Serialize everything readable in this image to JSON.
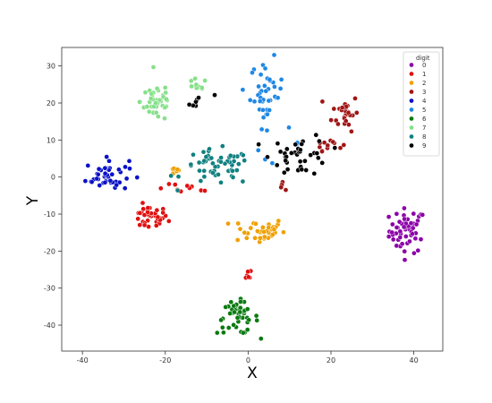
{
  "chart_data": {
    "type": "scatter",
    "xlabel": "X",
    "ylabel": "Y",
    "xlim": [
      -45,
      47
    ],
    "ylim": [
      -47,
      35
    ],
    "xticks": [
      -40,
      -20,
      0,
      20,
      40
    ],
    "yticks": [
      -40,
      -30,
      -20,
      -10,
      0,
      10,
      20,
      30
    ],
    "grid": false,
    "legend": {
      "title": "digit",
      "placement": "top-right"
    },
    "series": [
      {
        "name": "0",
        "color": "#8b00a8",
        "clusters": [
          {
            "cx": 38.5,
            "cy": -14.5,
            "sx": 2.2,
            "sy": 3.0,
            "n": 55
          }
        ]
      },
      {
        "name": "1",
        "color": "#e01010",
        "clusters": [
          {
            "cx": -24,
            "cy": -11,
            "sx": 2.3,
            "sy": 1.6,
            "n": 38
          },
          {
            "cx": -15,
            "cy": -3.2,
            "sx": 3.5,
            "sy": 0.6,
            "n": 10
          },
          {
            "cx": 0.2,
            "cy": -26,
            "sx": 0.4,
            "sy": 0.8,
            "n": 6
          }
        ]
      },
      {
        "name": "2",
        "color": "#f0a000",
        "clusters": [
          {
            "cx": 2.5,
            "cy": -14.5,
            "sx": 3.2,
            "sy": 1.8,
            "n": 38
          },
          {
            "cx": -17,
            "cy": 1.7,
            "sx": 1.2,
            "sy": 0.6,
            "n": 8
          }
        ]
      },
      {
        "name": "3",
        "color": "#a01515",
        "clusters": [
          {
            "cx": 23.5,
            "cy": 17.5,
            "sx": 1.6,
            "sy": 2.5,
            "n": 26
          },
          {
            "cx": 19.5,
            "cy": 9,
            "sx": 1.6,
            "sy": 0.9,
            "n": 12
          },
          {
            "cx": 8,
            "cy": -2.5,
            "sx": 0.4,
            "sy": 0.5,
            "n": 5
          }
        ]
      },
      {
        "name": "4",
        "color": "#0a10c8",
        "clusters": [
          {
            "cx": -34,
            "cy": 0.5,
            "sx": 2.6,
            "sy": 2.2,
            "n": 45
          }
        ]
      },
      {
        "name": "5",
        "color": "#1e88e5",
        "clusters": [
          {
            "cx": 4.5,
            "cy": 22.5,
            "sx": 2.0,
            "sy": 4.5,
            "n": 42
          },
          {
            "cx": 7,
            "cy": 9,
            "sx": 3.0,
            "sy": 2.0,
            "n": 5
          }
        ]
      },
      {
        "name": "6",
        "color": "#0a7a10",
        "clusters": [
          {
            "cx": -2.5,
            "cy": -38,
            "sx": 2.5,
            "sy": 2.2,
            "n": 45
          }
        ]
      },
      {
        "name": "7",
        "color": "#86e08a",
        "clusters": [
          {
            "cx": -22,
            "cy": 20.5,
            "sx": 2.0,
            "sy": 2.8,
            "n": 45
          },
          {
            "cx": -12.5,
            "cy": 24.5,
            "sx": 1.3,
            "sy": 1.0,
            "n": 10
          }
        ]
      },
      {
        "name": "8",
        "color": "#118080",
        "clusters": [
          {
            "cx": -7.5,
            "cy": 2.5,
            "sx": 4.2,
            "sy": 2.4,
            "n": 55
          }
        ]
      },
      {
        "name": "9",
        "color": "#000000",
        "clusters": [
          {
            "cx": 12.5,
            "cy": 6,
            "sx": 3.5,
            "sy": 2.8,
            "n": 40
          },
          {
            "cx": -12.5,
            "cy": 20,
            "sx": 0.9,
            "sy": 0.6,
            "n": 6
          },
          {
            "cx": -8,
            "cy": 22,
            "sx": 0.2,
            "sy": 0.2,
            "n": 1
          }
        ]
      }
    ]
  }
}
